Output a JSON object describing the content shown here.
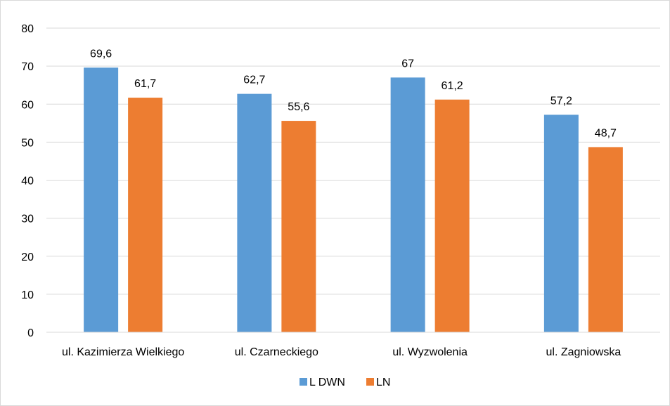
{
  "chart_data": {
    "type": "bar",
    "categories": [
      "ul. Kazimierza Wielkiego",
      "ul. Czarneckiego",
      "ul. Wyzwolenia",
      "ul. Zagniowska"
    ],
    "series": [
      {
        "name": "L DWN",
        "color": "#5b9bd5",
        "values": [
          69.6,
          62.7,
          67,
          57.2
        ],
        "labels": [
          "69,6",
          "62,7",
          "67",
          "57,2"
        ]
      },
      {
        "name": "LN",
        "color": "#ed7d31",
        "values": [
          61.7,
          55.6,
          61.2,
          48.7
        ],
        "labels": [
          "61,7",
          "55,6",
          "61,2",
          "48,7"
        ]
      }
    ],
    "ylim": [
      0,
      80
    ],
    "yticks": [
      0,
      10,
      20,
      30,
      40,
      50,
      60,
      70,
      80
    ],
    "grid": true,
    "legend": "bottom",
    "title": "",
    "xlabel": "",
    "ylabel": ""
  }
}
